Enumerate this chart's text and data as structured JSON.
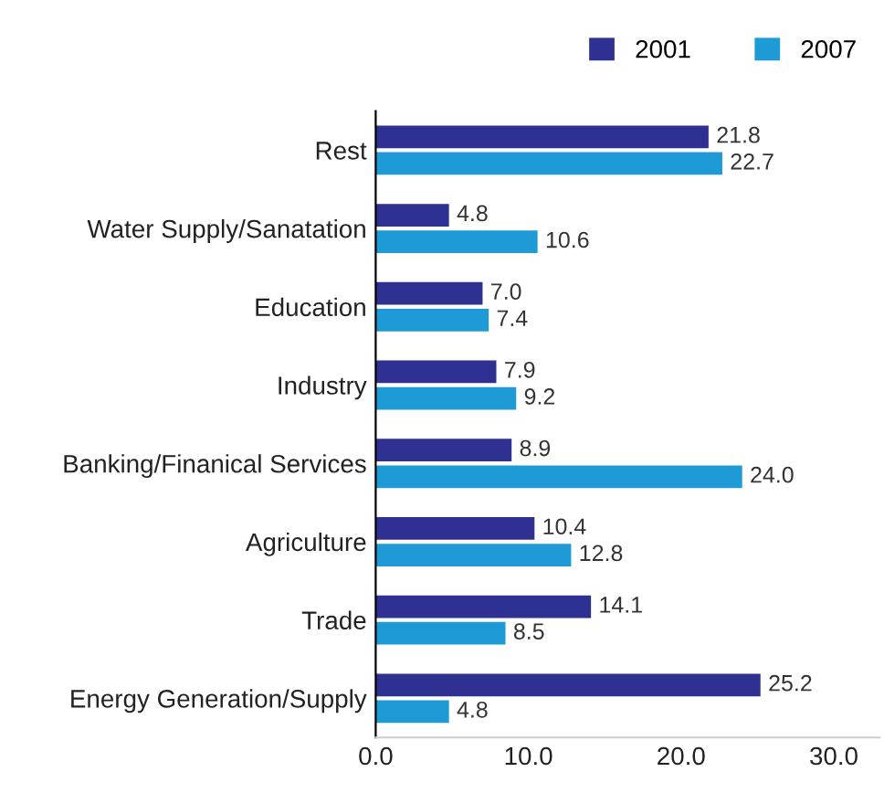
{
  "chart_data": {
    "type": "bar",
    "orientation": "horizontal",
    "categories": [
      "Rest",
      "Water Supply/Sanatation",
      "Education",
      "Industry",
      "Banking/Finanical Services",
      "Agriculture",
      "Trade",
      "Energy Generation/Supply"
    ],
    "series": [
      {
        "name": "2001",
        "color": "#2e3192",
        "values": [
          21.8,
          4.8,
          7.0,
          7.9,
          8.9,
          10.4,
          14.1,
          25.2
        ],
        "value_labels": [
          "21.8",
          "4.8",
          "7.0",
          "7.9",
          "8.9",
          "10.4",
          "14.1",
          "25.2"
        ]
      },
      {
        "name": "2007",
        "color": "#1e9ad6",
        "values": [
          22.7,
          10.6,
          7.4,
          9.2,
          24.0,
          12.8,
          8.5,
          4.8
        ],
        "value_labels": [
          "22.7",
          "10.6",
          "7.4",
          "9.2",
          "24.0",
          "12.8",
          "8.5",
          "4.8"
        ]
      }
    ],
    "xlim": [
      0,
      33
    ],
    "xticks": [
      {
        "value": 0,
        "label": "0.0"
      },
      {
        "value": 10,
        "label": "10.0"
      },
      {
        "value": 20,
        "label": "20.0"
      },
      {
        "value": 30,
        "label": "30.0"
      }
    ],
    "grid": false,
    "legend": "top right"
  }
}
